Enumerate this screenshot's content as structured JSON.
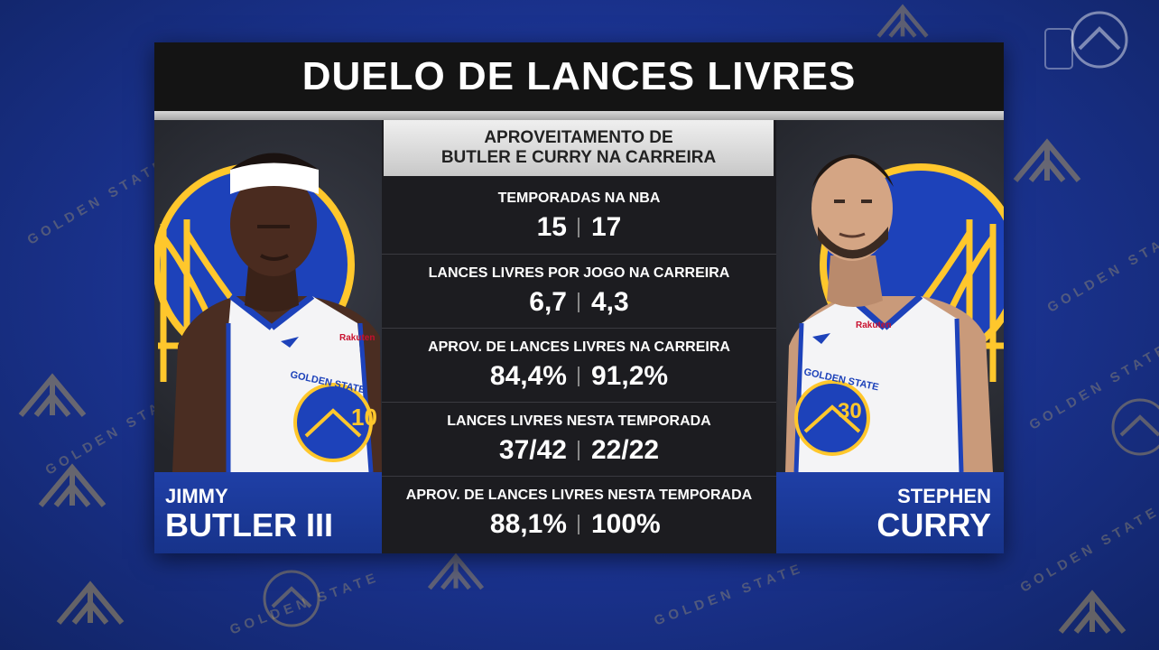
{
  "title": "DUELO DE LANCES LIVRES",
  "subheader": {
    "line1": "APROVEITAMENTO DE",
    "line2": "BUTLER E CURRY NA CARREIRA"
  },
  "players": {
    "left": {
      "first_name": "JIMMY",
      "last_name": "BUTLER III",
      "jersey_number": "10",
      "jersey_team": "GOLDEN STATE",
      "sponsor": "Rakuten"
    },
    "right": {
      "first_name": "STEPHEN",
      "last_name": "CURRY",
      "jersey_number": "30",
      "jersey_team": "GOLDEN STATE",
      "sponsor": "Rakuten"
    }
  },
  "stats": [
    {
      "label": "TEMPORADAS NA NBA",
      "left": "15",
      "right": "17"
    },
    {
      "label": "LANCES LIVRES POR JOGO NA CARREIRA",
      "left": "6,7",
      "right": "4,3"
    },
    {
      "label": "APROV. DE LANCES LIVRES NA CARREIRA",
      "left": "84,4%",
      "right": "91,2%"
    },
    {
      "label": "LANCES LIVRES NESTA TEMPORADA",
      "left": "37/42",
      "right": "22/22"
    },
    {
      "label": "APROV. DE LANCES LIVRES NESTA TEMPORADA",
      "left": "88,1%",
      "right": "100%"
    }
  ],
  "background_text": "GOLDEN STATE",
  "colors": {
    "team_blue": "#1d42ba",
    "team_gold": "#ffc72c",
    "panel_dark": "#1c1c20",
    "title_bg": "#141414"
  },
  "icons": [
    "warriors-bridge-logo-icon",
    "network-watermark-icon"
  ]
}
